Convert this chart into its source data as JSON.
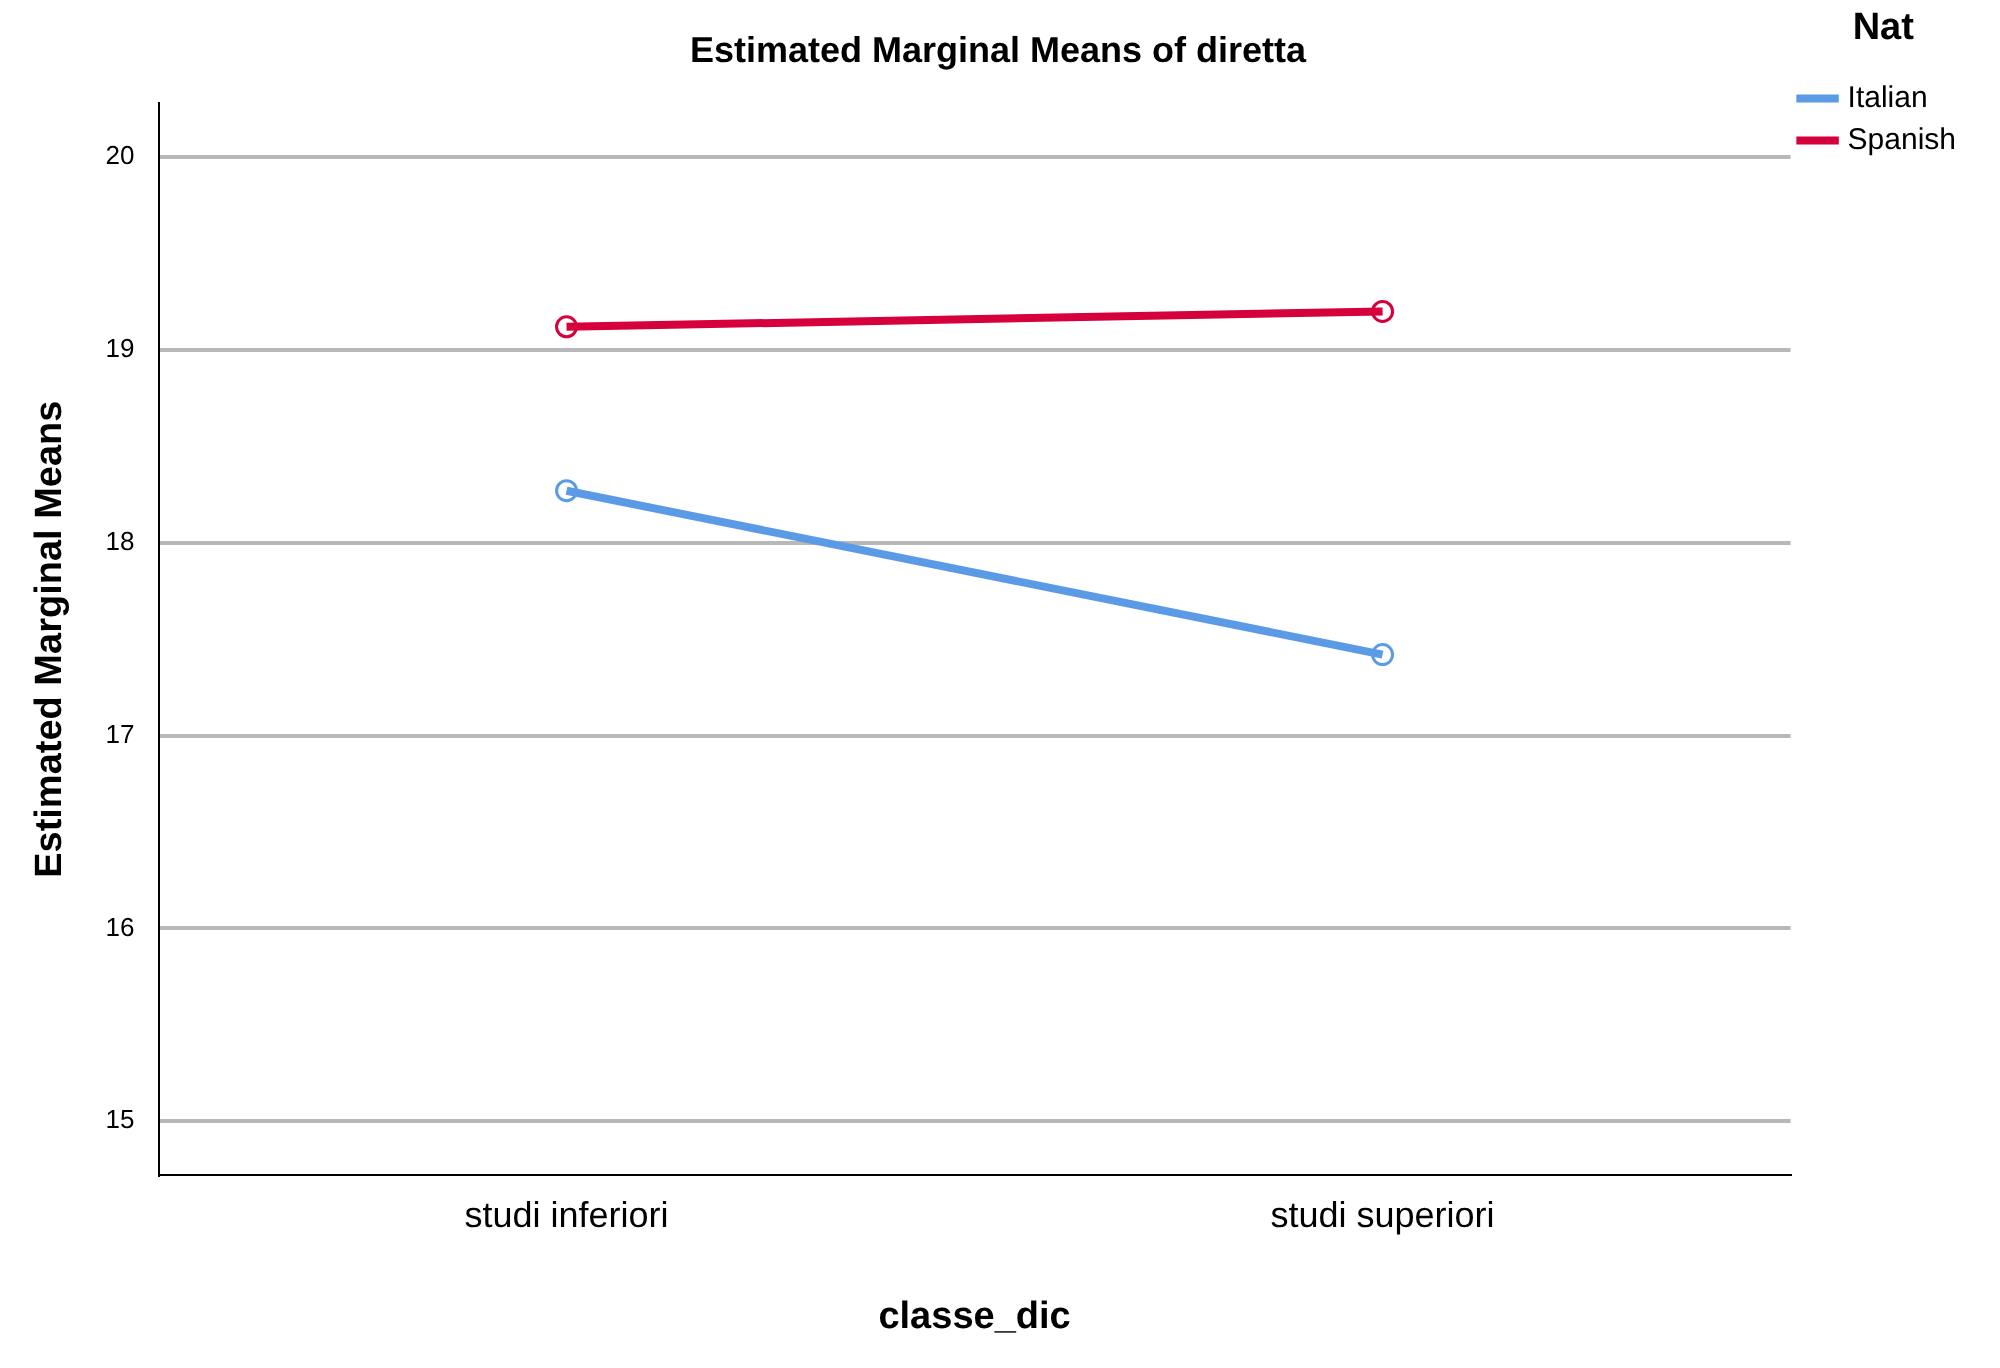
{
  "chart_data": {
    "type": "line",
    "title": "Estimated Marginal Means of diretta",
    "xlabel": "classe_dic",
    "ylabel": "Estimated Marginal Means",
    "legend_title": "Nat",
    "categories": [
      "studi inferiori",
      "studi superiori"
    ],
    "series": [
      {
        "name": "Italian",
        "color": "#5b9be6",
        "values": [
          18.27,
          17.42
        ]
      },
      {
        "name": "Spanish",
        "color": "#d5003c",
        "values": [
          19.12,
          19.2
        ]
      }
    ],
    "ylim": [
      14.72,
      20.28
    ],
    "yticks": [
      15,
      16,
      17,
      18,
      19,
      20
    ],
    "grid": "y",
    "legend": "top right",
    "marker": "circle",
    "line_style": "solid"
  }
}
